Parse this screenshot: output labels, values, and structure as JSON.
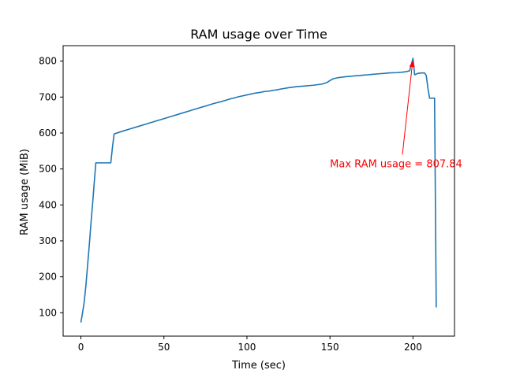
{
  "chart_data": {
    "type": "line",
    "title": "RAM usage over Time",
    "xlabel": "Time (sec)",
    "ylabel": "RAM usage (MiB)",
    "xlim": [
      -10.7,
      225
    ],
    "ylim": [
      35,
      843
    ],
    "xticks": [
      0,
      50,
      100,
      150,
      200
    ],
    "yticks": [
      100,
      200,
      300,
      400,
      500,
      600,
      700,
      800
    ],
    "grid": false,
    "line_color": "#1f77b4",
    "annotation_color": "#ff0000",
    "series": [
      {
        "x": [
          0,
          1,
          2,
          3,
          4,
          5,
          6,
          7,
          8,
          9,
          10,
          12,
          14,
          16,
          18,
          19,
          20,
          21,
          25,
          30,
          35,
          40,
          45,
          50,
          55,
          60,
          65,
          70,
          75,
          80,
          85,
          90,
          95,
          100,
          105,
          108,
          110,
          112,
          114,
          116,
          118,
          120,
          125,
          130,
          135,
          140,
          145,
          148,
          150,
          152,
          155,
          160,
          163,
          165,
          168,
          170,
          173,
          175,
          180,
          183,
          185,
          190,
          193,
          195,
          198,
          200,
          201,
          203,
          205,
          207,
          208,
          209,
          210,
          212,
          213,
          214
        ],
        "y": [
          73,
          100,
          130,
          175,
          230,
          285,
          345,
          400,
          460,
          517,
          517,
          517,
          517,
          517,
          517,
          560,
          597,
          599,
          605,
          612,
          619,
          626,
          633,
          640,
          647,
          654,
          661,
          668,
          675,
          682,
          688,
          695,
          701,
          706,
          711,
          713,
          715,
          716,
          717,
          719,
          720,
          722,
          726,
          729,
          731,
          733,
          736,
          740,
          746,
          751,
          754,
          757,
          758,
          759,
          760,
          761,
          762,
          763,
          765,
          766,
          767,
          768,
          769,
          770,
          773,
          807.84,
          762,
          766,
          767,
          767,
          760,
          724,
          697,
          697,
          697,
          115
        ]
      }
    ],
    "annotation": {
      "text": "Max RAM usage = 807.84",
      "point": [
        200,
        807.84
      ],
      "text_position": [
        150,
        505
      ]
    }
  }
}
